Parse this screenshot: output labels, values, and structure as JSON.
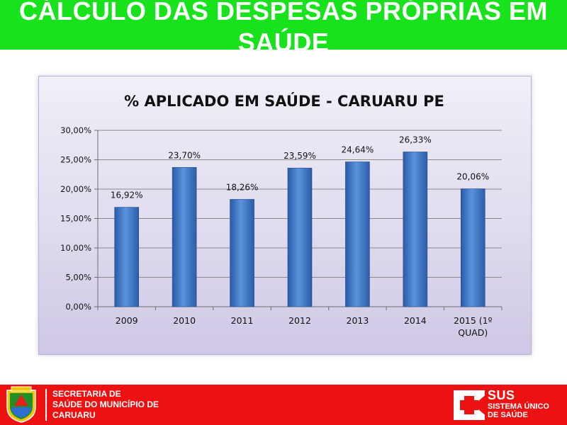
{
  "header": {
    "title": "CÁLCULO DAS DESPESAS PRÓPRIAS EM SAÚDE"
  },
  "chart_data": {
    "type": "bar",
    "title": "% APLICADO EM SAÚDE - CARUARU PE",
    "categories": [
      "2009",
      "2010",
      "2011",
      "2012",
      "2013",
      "2014",
      "2015 (1º QUAD)"
    ],
    "category_lines": [
      [
        "2009"
      ],
      [
        "2010"
      ],
      [
        "2011"
      ],
      [
        "2012"
      ],
      [
        "2013"
      ],
      [
        "2014"
      ],
      [
        "2015 (1º",
        "QUAD)"
      ]
    ],
    "values": [
      16.92,
      23.7,
      18.26,
      23.59,
      24.64,
      26.33,
      20.06
    ],
    "data_labels": [
      "16,92%",
      "23,70%",
      "18,26%",
      "23,59%",
      "24,64%",
      "26,33%",
      "20,06%"
    ],
    "y_ticks": [
      0,
      5,
      10,
      15,
      20,
      25,
      30
    ],
    "y_tick_labels": [
      "0,00%",
      "5,00%",
      "10,00%",
      "15,00%",
      "20,00%",
      "25,00%",
      "30,00%"
    ],
    "ylim": [
      0,
      30
    ],
    "grid": true,
    "legend": "none",
    "bar_color": "#3f78c6",
    "xlabel": "",
    "ylabel": ""
  },
  "footer": {
    "org_lines": [
      "SECRETARIA DE",
      "SAÚDE DO MUNICÍPIO DE",
      "CARUARU"
    ],
    "sus_title": "SUS",
    "sus_lines": [
      "SISTEMA ÚNICO",
      "DE SAÚDE"
    ]
  }
}
